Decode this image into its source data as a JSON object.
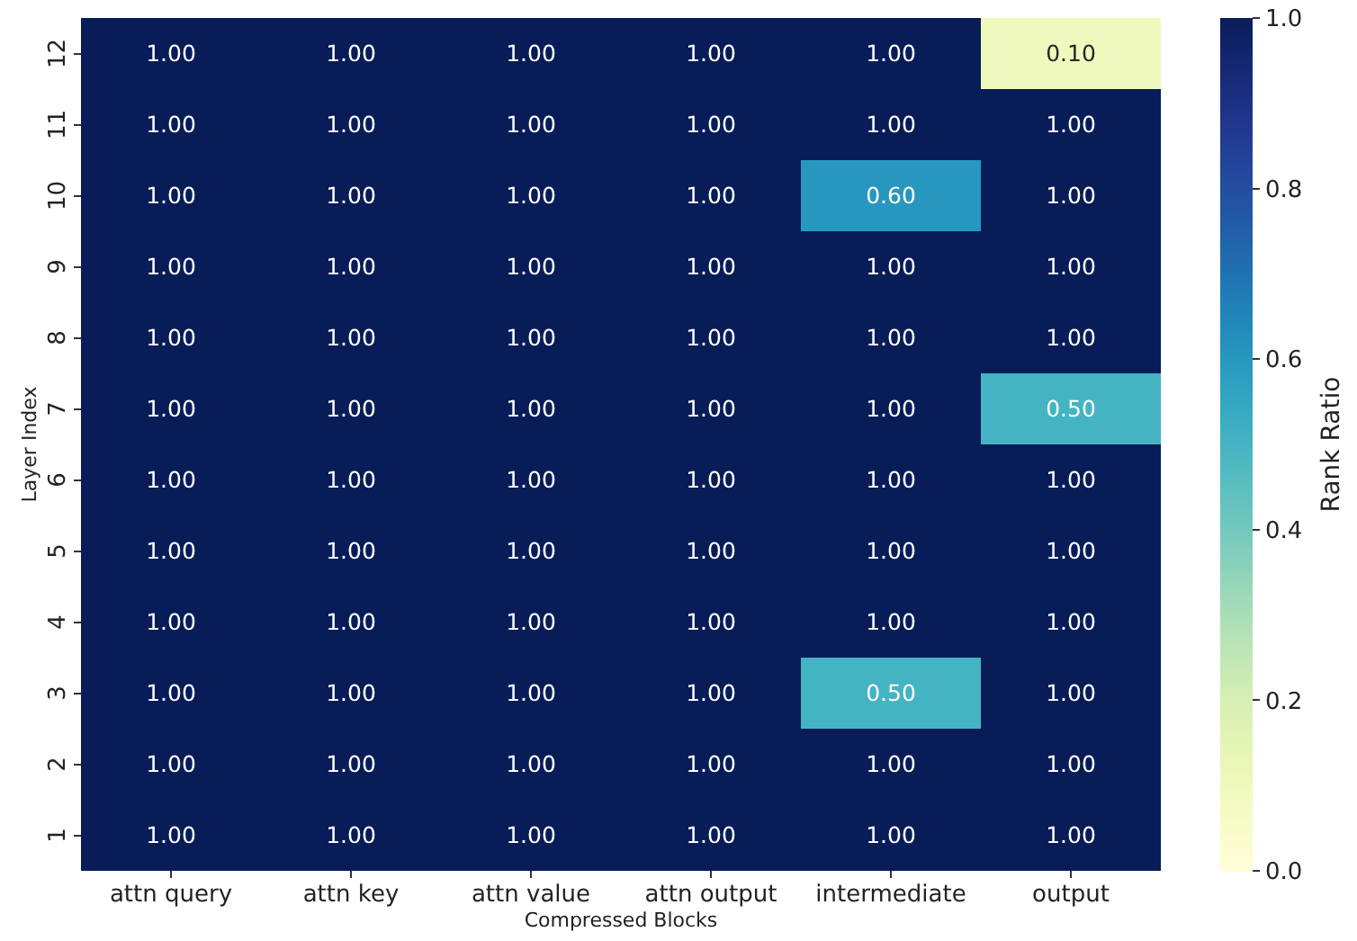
{
  "chart_data": {
    "type": "heatmap",
    "xlabel": "Compressed Blocks",
    "ylabel": "Layer Index",
    "clabel": "Rank Ratio",
    "categories": [
      "attn query",
      "attn key",
      "attn value",
      "attn output",
      "intermediate",
      "output"
    ],
    "y_categories": [
      "12",
      "11",
      "10",
      "9",
      "8",
      "7",
      "6",
      "5",
      "4",
      "3",
      "2",
      "1"
    ],
    "cells": [
      [
        1,
        1,
        1,
        1,
        1,
        0.1
      ],
      [
        1,
        1,
        1,
        1,
        1,
        1
      ],
      [
        1,
        1,
        1,
        1,
        0.6,
        1
      ],
      [
        1,
        1,
        1,
        1,
        1,
        1
      ],
      [
        1,
        1,
        1,
        1,
        1,
        1
      ],
      [
        1,
        1,
        1,
        1,
        1,
        0.5
      ],
      [
        1,
        1,
        1,
        1,
        1,
        1
      ],
      [
        1,
        1,
        1,
        1,
        1,
        1
      ],
      [
        1,
        1,
        1,
        1,
        1,
        1
      ],
      [
        1,
        1,
        1,
        1,
        0.5,
        1
      ],
      [
        1,
        1,
        1,
        1,
        1,
        1
      ],
      [
        1,
        1,
        1,
        1,
        1,
        1
      ]
    ],
    "cell_labels": [
      [
        "1.00",
        "1.00",
        "1.00",
        "1.00",
        "1.00",
        "0.10"
      ],
      [
        "1.00",
        "1.00",
        "1.00",
        "1.00",
        "1.00",
        "1.00"
      ],
      [
        "1.00",
        "1.00",
        "1.00",
        "1.00",
        "0.60",
        "1.00"
      ],
      [
        "1.00",
        "1.00",
        "1.00",
        "1.00",
        "1.00",
        "1.00"
      ],
      [
        "1.00",
        "1.00",
        "1.00",
        "1.00",
        "1.00",
        "1.00"
      ],
      [
        "1.00",
        "1.00",
        "1.00",
        "1.00",
        "1.00",
        "0.50"
      ],
      [
        "1.00",
        "1.00",
        "1.00",
        "1.00",
        "1.00",
        "1.00"
      ],
      [
        "1.00",
        "1.00",
        "1.00",
        "1.00",
        "1.00",
        "1.00"
      ],
      [
        "1.00",
        "1.00",
        "1.00",
        "1.00",
        "1.00",
        "1.00"
      ],
      [
        "1.00",
        "1.00",
        "1.00",
        "1.00",
        "0.50",
        "1.00"
      ],
      [
        "1.00",
        "1.00",
        "1.00",
        "1.00",
        "1.00",
        "1.00"
      ],
      [
        "1.00",
        "1.00",
        "1.00",
        "1.00",
        "1.00",
        "1.00"
      ]
    ],
    "clim": [
      0,
      1
    ],
    "cticks": [
      {
        "value": 0,
        "label": "0.0"
      },
      {
        "value": 0.2,
        "label": "0.2"
      },
      {
        "value": 0.4,
        "label": "0.4"
      },
      {
        "value": 0.6,
        "label": "0.6"
      },
      {
        "value": 0.8,
        "label": "0.8"
      },
      {
        "value": 1,
        "label": "1.0"
      }
    ]
  }
}
